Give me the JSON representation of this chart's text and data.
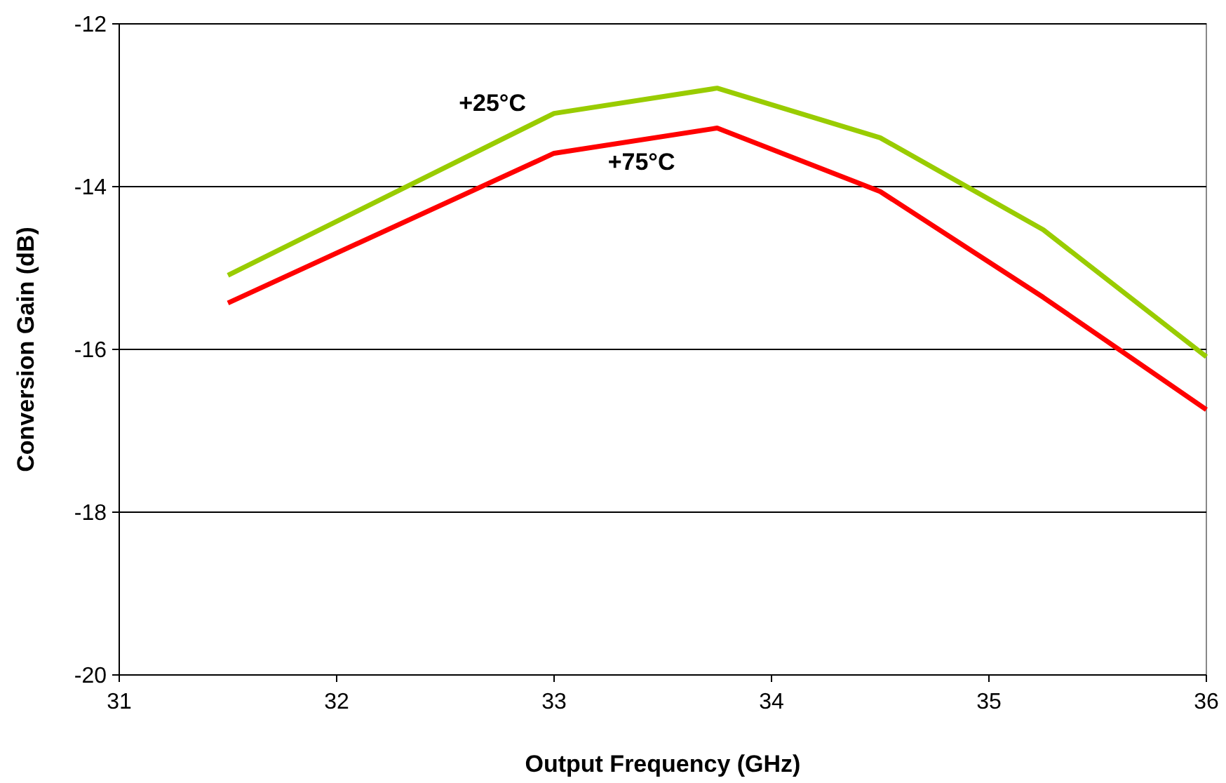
{
  "chart_data": {
    "type": "line",
    "xlabel": "Output Frequency (GHz)",
    "ylabel": "Conversion Gain (dB)",
    "x": [
      31.5,
      33,
      33.75,
      34.5,
      35.25,
      36
    ],
    "series": [
      {
        "name": "+25°C",
        "color": "#99cc00",
        "values": [
          -15.09,
          -13.1,
          -12.79,
          -13.4,
          -14.53,
          -16.09
        ]
      },
      {
        "name": "+75°C",
        "color": "#ff0000",
        "values": [
          -15.43,
          -13.59,
          -13.28,
          -14.06,
          -15.36,
          -16.74
        ]
      }
    ],
    "xlim": [
      31,
      36
    ],
    "xticks": [
      31,
      32,
      33,
      34,
      35,
      36
    ],
    "ylim": [
      -20,
      -12
    ],
    "yticks": [
      -20,
      -18,
      -16,
      -14,
      -12
    ],
    "grid": "y",
    "legend": false,
    "marker": "none",
    "line_style": "solid"
  }
}
